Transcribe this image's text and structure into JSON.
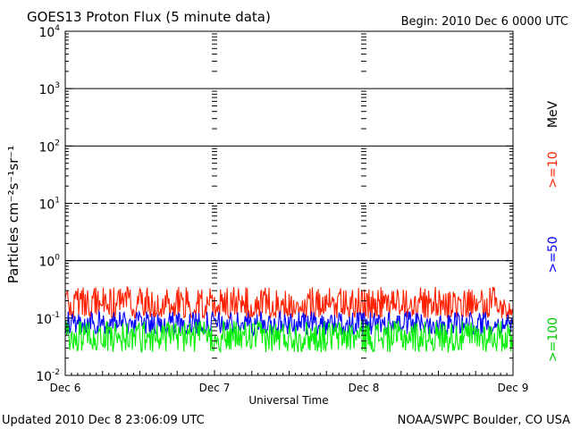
{
  "header": {
    "title": "GOES13 Proton Flux (5 minute data)",
    "begin": "Begin: 2010 Dec 6 0000 UTC"
  },
  "footer": {
    "updated": "Updated 2010 Dec  8 23:06:09 UTC",
    "source": "NOAA/SWPC Boulder, CO USA"
  },
  "colors": {
    "ge10": "#ff2000",
    "ge50": "#0000ff",
    "ge100": "#00ee00",
    "axis": "#000000"
  },
  "chart_data": {
    "type": "line",
    "title": "GOES13 Proton Flux (5 minute data)",
    "xlabel": "Universal Time",
    "ylabel": "Particles cm⁻²s⁻¹sr⁻¹",
    "y_scale": "log",
    "ylim": [
      0.01,
      10000
    ],
    "xlim": [
      "2010-12-06 00:00",
      "2010-12-09 00:00"
    ],
    "x_tick_labels": [
      "Dec 6",
      "Dec 7",
      "Dec 8",
      "Dec 9"
    ],
    "y_tick_labels": [
      {
        "base": "10",
        "exp": "-2",
        "value": 0.01
      },
      {
        "base": "10",
        "exp": "-1",
        "value": 0.1
      },
      {
        "base": "10",
        "exp": "0",
        "value": 1
      },
      {
        "base": "10",
        "exp": "1",
        "value": 10
      },
      {
        "base": "10",
        "exp": "2",
        "value": 100
      },
      {
        "base": "10",
        "exp": "3",
        "value": 1000
      },
      {
        "base": "10",
        "exp": "4",
        "value": 10000
      }
    ],
    "unit_label": "MeV",
    "reference_lines": [
      {
        "value": 10,
        "style": "dashed"
      },
      {
        "value": 100,
        "style": "solid"
      },
      {
        "value": 1000,
        "style": "solid"
      },
      {
        "value": 1,
        "style": "solid"
      }
    ],
    "series": [
      {
        "name": ">=10",
        "color": "#ff2000",
        "typical_range": [
          0.1,
          0.35
        ]
      },
      {
        "name": ">=50",
        "color": "#0000ff",
        "typical_range": [
          0.05,
          0.13
        ]
      },
      {
        "name": ">=100",
        "color": "#00ee00",
        "typical_range": [
          0.025,
          0.09
        ]
      }
    ],
    "grid": false,
    "legend": "right"
  }
}
